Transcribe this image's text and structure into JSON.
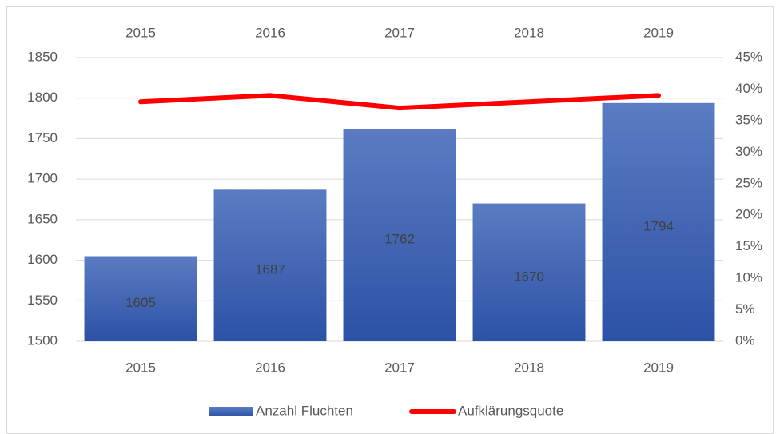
{
  "chart_data": {
    "type": "bar_line",
    "categories": [
      "2015",
      "2016",
      "2017",
      "2018",
      "2019"
    ],
    "series": [
      {
        "name": "Anzahl Fluchten",
        "type": "bar",
        "color": "#4068b8",
        "values": [
          1605,
          1687,
          1762,
          1670,
          1794
        ]
      },
      {
        "name": "Aufklärungsquote",
        "type": "line",
        "axis": "y2",
        "color": "#ff0000",
        "values": [
          38,
          39,
          37,
          38,
          39
        ]
      }
    ],
    "ylim": [
      1500,
      1850
    ],
    "yticks": [
      1500,
      1550,
      1600,
      1650,
      1700,
      1750,
      1800,
      1850
    ],
    "y2lim": [
      0,
      45
    ],
    "y2ticks": [
      {
        "value": 0,
        "label": "0%"
      },
      {
        "value": 5,
        "label": "5%"
      },
      {
        "value": 10,
        "label": "10%"
      },
      {
        "value": 15,
        "label": "15%"
      },
      {
        "value": 20,
        "label": "20%"
      },
      {
        "value": 25,
        "label": "25%"
      },
      {
        "value": 30,
        "label": "30%"
      },
      {
        "value": 35,
        "label": "35%"
      },
      {
        "value": 40,
        "label": "40%"
      },
      {
        "value": 45,
        "label": "45%"
      }
    ],
    "grid": true,
    "legend": "bottom"
  }
}
